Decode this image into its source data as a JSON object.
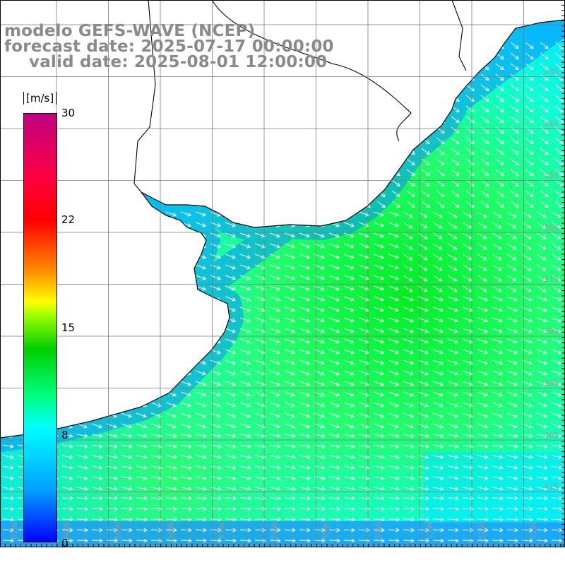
{
  "title": {
    "line1": "modelo GEFS-WAVE (NCEP)",
    "line2": "forecast date: 2025-07-17 00:00:00",
    "line3": "valid date: 2025-08-01 12:00:00"
  },
  "colorbar": {
    "unit": "[m/s]",
    "ticks": [
      "30",
      "22",
      "15",
      "8",
      "0"
    ],
    "tick_values": [
      30,
      22,
      15,
      8,
      0
    ],
    "vmin": 0,
    "vmax": 30,
    "colors": {
      "0": "#0000ff",
      "4": "#00a0ff",
      "8": "#00ffff",
      "10": "#00ff80",
      "13": "#00d000",
      "16": "#a0ff00",
      "17": "#ffff00",
      "19": "#ff9000",
      "22": "#ff0000",
      "26": "#ff0040",
      "30": "#c00080"
    }
  },
  "map": {
    "variable": "wind speed and direction over ocean",
    "land_color": "#ffffff",
    "coastline_color": "#000000",
    "grid_color": "#7a7a7a",
    "arrow_color": "#ffffff",
    "lat_labels": [
      "33S",
      "34S",
      "35S",
      "36S",
      "37S",
      "38S",
      "39S",
      "40S",
      "41S"
    ],
    "lon_labels": [
      "61W",
      "60W",
      "59W",
      "58W",
      "57W",
      "56W",
      "55W",
      "54W",
      "53W",
      "52W",
      "51W"
    ]
  }
}
